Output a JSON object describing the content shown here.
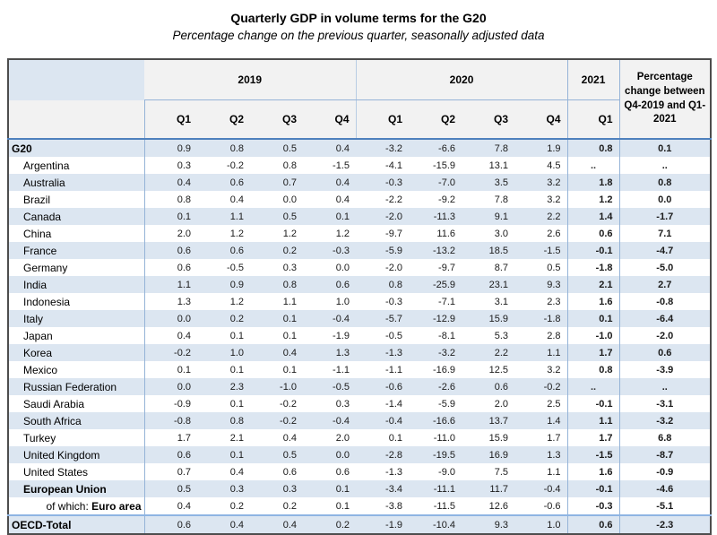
{
  "title": "Quarterly GDP in volume terms for the G20",
  "subtitle": "Percentage change on the previous quarter, seasonally adjusted data",
  "table": {
    "year_groups": [
      {
        "label": "2019",
        "cols": 4
      },
      {
        "label": "2020",
        "cols": 4
      },
      {
        "label": "2021",
        "cols": 1
      }
    ],
    "quarter_headers": [
      "Q1",
      "Q2",
      "Q3",
      "Q4",
      "Q1",
      "Q2",
      "Q3",
      "Q4",
      "Q1"
    ],
    "pct_change_header": "Percentage change between Q4-2019 and Q1-2021",
    "rows": [
      {
        "label": "G20",
        "bold": true,
        "indent": false,
        "values": [
          "0.9",
          "0.8",
          "0.5",
          "0.4",
          "-3.2",
          "-6.6",
          "7.8",
          "1.9",
          "0.8"
        ],
        "pct": "0.1"
      },
      {
        "label": "Argentina",
        "bold": false,
        "indent": true,
        "values": [
          "0.3",
          "-0.2",
          "0.8",
          "-1.5",
          "-4.1",
          "-15.9",
          "13.1",
          "4.5",
          ".."
        ],
        "pct": ".."
      },
      {
        "label": "Australia",
        "bold": false,
        "indent": true,
        "values": [
          "0.4",
          "0.6",
          "0.7",
          "0.4",
          "-0.3",
          "-7.0",
          "3.5",
          "3.2",
          "1.8"
        ],
        "pct": "0.8"
      },
      {
        "label": "Brazil",
        "bold": false,
        "indent": true,
        "values": [
          "0.8",
          "0.4",
          "0.0",
          "0.4",
          "-2.2",
          "-9.2",
          "7.8",
          "3.2",
          "1.2"
        ],
        "pct": "0.0"
      },
      {
        "label": "Canada",
        "bold": false,
        "indent": true,
        "values": [
          "0.1",
          "1.1",
          "0.5",
          "0.1",
          "-2.0",
          "-11.3",
          "9.1",
          "2.2",
          "1.4"
        ],
        "pct": "-1.7"
      },
      {
        "label": "China",
        "bold": false,
        "indent": true,
        "values": [
          "2.0",
          "1.2",
          "1.2",
          "1.2",
          "-9.7",
          "11.6",
          "3.0",
          "2.6",
          "0.6"
        ],
        "pct": "7.1"
      },
      {
        "label": "France",
        "bold": false,
        "indent": true,
        "values": [
          "0.6",
          "0.6",
          "0.2",
          "-0.3",
          "-5.9",
          "-13.2",
          "18.5",
          "-1.5",
          "-0.1"
        ],
        "pct": "-4.7"
      },
      {
        "label": "Germany",
        "bold": false,
        "indent": true,
        "values": [
          "0.6",
          "-0.5",
          "0.3",
          "0.0",
          "-2.0",
          "-9.7",
          "8.7",
          "0.5",
          "-1.8"
        ],
        "pct": "-5.0"
      },
      {
        "label": "India",
        "bold": false,
        "indent": true,
        "values": [
          "1.1",
          "0.9",
          "0.8",
          "0.6",
          "0.8",
          "-25.9",
          "23.1",
          "9.3",
          "2.1"
        ],
        "pct": "2.7"
      },
      {
        "label": "Indonesia",
        "bold": false,
        "indent": true,
        "values": [
          "1.3",
          "1.2",
          "1.1",
          "1.0",
          "-0.3",
          "-7.1",
          "3.1",
          "2.3",
          "1.6"
        ],
        "pct": "-0.8"
      },
      {
        "label": "Italy",
        "bold": false,
        "indent": true,
        "values": [
          "0.0",
          "0.2",
          "0.1",
          "-0.4",
          "-5.7",
          "-12.9",
          "15.9",
          "-1.8",
          "0.1"
        ],
        "pct": "-6.4"
      },
      {
        "label": "Japan",
        "bold": false,
        "indent": true,
        "values": [
          "0.4",
          "0.1",
          "0.1",
          "-1.9",
          "-0.5",
          "-8.1",
          "5.3",
          "2.8",
          "-1.0"
        ],
        "pct": "-2.0"
      },
      {
        "label": "Korea",
        "bold": false,
        "indent": true,
        "values": [
          "-0.2",
          "1.0",
          "0.4",
          "1.3",
          "-1.3",
          "-3.2",
          "2.2",
          "1.1",
          "1.7"
        ],
        "pct": "0.6"
      },
      {
        "label": "Mexico",
        "bold": false,
        "indent": true,
        "values": [
          "0.1",
          "0.1",
          "0.1",
          "-1.1",
          "-1.1",
          "-16.9",
          "12.5",
          "3.2",
          "0.8"
        ],
        "pct": "-3.9"
      },
      {
        "label": "Russian Federation",
        "bold": false,
        "indent": true,
        "values": [
          "0.0",
          "2.3",
          "-1.0",
          "-0.5",
          "-0.6",
          "-2.6",
          "0.6",
          "-0.2",
          ".."
        ],
        "pct": ".."
      },
      {
        "label": "Saudi Arabia",
        "bold": false,
        "indent": true,
        "values": [
          "-0.9",
          "0.1",
          "-0.2",
          "0.3",
          "-1.4",
          "-5.9",
          "2.0",
          "2.5",
          "-0.1"
        ],
        "pct": "-3.1"
      },
      {
        "label": "South Africa",
        "bold": false,
        "indent": true,
        "values": [
          "-0.8",
          "0.8",
          "-0.2",
          "-0.4",
          "-0.4",
          "-16.6",
          "13.7",
          "1.4",
          "1.1"
        ],
        "pct": "-3.2"
      },
      {
        "label": "Turkey",
        "bold": false,
        "indent": true,
        "values": [
          "1.7",
          "2.1",
          "0.4",
          "2.0",
          "0.1",
          "-11.0",
          "15.9",
          "1.7",
          "1.7"
        ],
        "pct": "6.8"
      },
      {
        "label": "United Kingdom",
        "bold": false,
        "indent": true,
        "values": [
          "0.6",
          "0.1",
          "0.5",
          "0.0",
          "-2.8",
          "-19.5",
          "16.9",
          "1.3",
          "-1.5"
        ],
        "pct": "-8.7"
      },
      {
        "label": "United States",
        "bold": false,
        "indent": true,
        "values": [
          "0.7",
          "0.4",
          "0.6",
          "0.6",
          "-1.3",
          "-9.0",
          "7.5",
          "1.1",
          "1.6"
        ],
        "pct": "-0.9"
      },
      {
        "label": "European Union",
        "bold": true,
        "indent": true,
        "values": [
          "0.5",
          "0.3",
          "0.3",
          "0.1",
          "-3.4",
          "-11.1",
          "11.7",
          "-0.4",
          "-0.1"
        ],
        "pct": "-4.6"
      },
      {
        "label": "Euro area",
        "prefix": "of which: ",
        "bold": true,
        "label_align": "right",
        "values": [
          "0.4",
          "0.2",
          "0.2",
          "0.1",
          "-3.8",
          "-11.5",
          "12.6",
          "-0.6",
          "-0.3"
        ],
        "pct": "-5.1"
      },
      {
        "label": "OECD-Total",
        "bold": true,
        "indent": false,
        "cls": "oecd",
        "values": [
          "0.6",
          "0.4",
          "0.4",
          "0.2",
          "-1.9",
          "-10.4",
          "9.3",
          "1.0",
          "0.6"
        ],
        "pct": "-2.3"
      }
    ]
  }
}
